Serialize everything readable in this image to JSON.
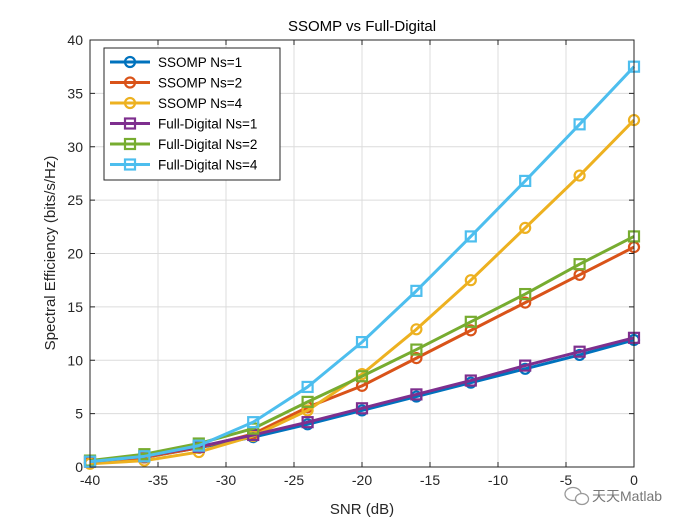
{
  "chart_data": {
    "type": "line",
    "title": "SSOMP vs Full-Digital",
    "xlabel": "SNR (dB)",
    "ylabel": "Spectral Efficiency (bits/s/Hz)",
    "xlim": [
      -40,
      0
    ],
    "ylim": [
      0,
      40
    ],
    "xticks": [
      -40,
      -35,
      -30,
      -25,
      -20,
      -15,
      -10,
      -5,
      0
    ],
    "yticks": [
      0,
      5,
      10,
      15,
      20,
      25,
      30,
      35,
      40
    ],
    "grid": true,
    "legend_position": "top-left",
    "x": [
      -40,
      -36,
      -32,
      -28,
      -24,
      -20,
      -16,
      -12,
      -8,
      -4,
      0
    ],
    "series": [
      {
        "name": "SSOMP Ns=1",
        "color": "#0072BD",
        "marker": "circle",
        "values": [
          0.4,
          0.9,
          1.8,
          2.8,
          4.0,
          5.3,
          6.6,
          7.9,
          9.2,
          10.5,
          11.9
        ]
      },
      {
        "name": "SSOMP Ns=2",
        "color": "#D95319",
        "marker": "circle",
        "values": [
          0.4,
          0.9,
          1.8,
          3.1,
          5.6,
          7.6,
          10.2,
          12.8,
          15.4,
          18.0,
          20.6
        ]
      },
      {
        "name": "SSOMP Ns=4",
        "color": "#EDB120",
        "marker": "circle",
        "values": [
          0.3,
          0.6,
          1.4,
          2.9,
          5.3,
          8.7,
          12.9,
          17.5,
          22.4,
          27.3,
          32.5
        ]
      },
      {
        "name": "Full-Digital Ns=1",
        "color": "#7E2F8E",
        "marker": "square",
        "values": [
          0.5,
          1.0,
          1.9,
          3.0,
          4.2,
          5.5,
          6.8,
          8.1,
          9.5,
          10.8,
          12.1
        ]
      },
      {
        "name": "Full-Digital Ns=2",
        "color": "#77AC30",
        "marker": "square",
        "values": [
          0.6,
          1.2,
          2.2,
          3.6,
          6.1,
          8.5,
          11.0,
          13.6,
          16.2,
          19.0,
          21.6
        ]
      },
      {
        "name": "Full-Digital Ns=4",
        "color": "#4DBEEE",
        "marker": "square",
        "values": [
          0.5,
          1.0,
          2.0,
          4.2,
          7.5,
          11.7,
          16.5,
          21.6,
          26.8,
          32.1,
          37.5
        ]
      }
    ]
  },
  "watermark": "天天Matlab"
}
